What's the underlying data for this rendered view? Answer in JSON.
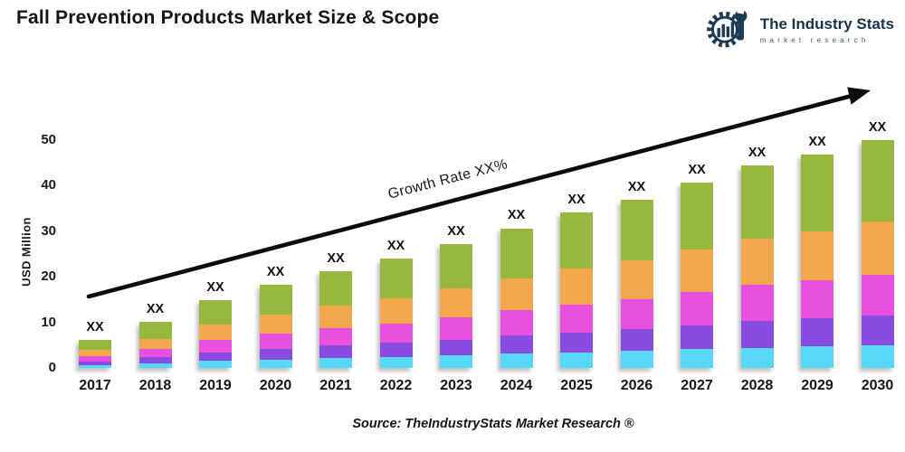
{
  "header": {
    "title": "Fall Prevention Products Market Size & Scope",
    "logo": {
      "name": "The Industry Stats",
      "tagline": "market research",
      "brand_color": "#1d3b53"
    }
  },
  "footer": {
    "source": "Source: TheIndustryStats Market Research ®"
  },
  "chart_data": {
    "type": "bar",
    "stacked": true,
    "title": "Fall Prevention Products Market Size & Scope",
    "xlabel": "",
    "ylabel": "USD Million",
    "yticks": [
      0,
      10,
      20,
      30,
      40,
      50
    ],
    "ylim": [
      0,
      55
    ],
    "grid": false,
    "legend": "none",
    "bar_value_label": "XX",
    "growth_label": "Growth Rate XX%",
    "categories": [
      "2017",
      "2018",
      "2019",
      "2020",
      "2021",
      "2022",
      "2023",
      "2024",
      "2025",
      "2026",
      "2027",
      "2028",
      "2029",
      "2030"
    ],
    "series": [
      {
        "name": "segment-1-bottom",
        "color": "#55d9f7",
        "values": [
          0.6,
          1.0,
          1.5,
          1.8,
          2.1,
          2.4,
          2.7,
          3.1,
          3.4,
          3.7,
          4.1,
          4.4,
          4.7,
          5.0
        ]
      },
      {
        "name": "segment-2",
        "color": "#8a4be0",
        "values": [
          0.8,
          1.3,
          1.9,
          2.4,
          2.8,
          3.1,
          3.5,
          4.0,
          4.4,
          4.8,
          5.3,
          5.8,
          6.1,
          6.5
        ]
      },
      {
        "name": "segment-3",
        "color": "#e950e0",
        "values": [
          1.1,
          1.8,
          2.7,
          3.3,
          3.8,
          4.3,
          4.9,
          5.5,
          6.1,
          6.6,
          7.3,
          8.0,
          8.4,
          9.0
        ]
      },
      {
        "name": "segment-4",
        "color": "#f2a74b",
        "values": [
          1.4,
          2.3,
          3.4,
          4.2,
          4.9,
          5.5,
          6.3,
          7.0,
          7.8,
          8.5,
          9.3,
          10.2,
          10.7,
          11.5
        ]
      },
      {
        "name": "segment-5-top",
        "color": "#97b83f",
        "values": [
          2.2,
          3.7,
          5.3,
          6.6,
          7.6,
          8.6,
          9.8,
          11.0,
          12.3,
          13.2,
          14.6,
          16.0,
          16.8,
          18.0
        ]
      }
    ],
    "totals_label_note": "every bar is annotated XX above its top"
  }
}
